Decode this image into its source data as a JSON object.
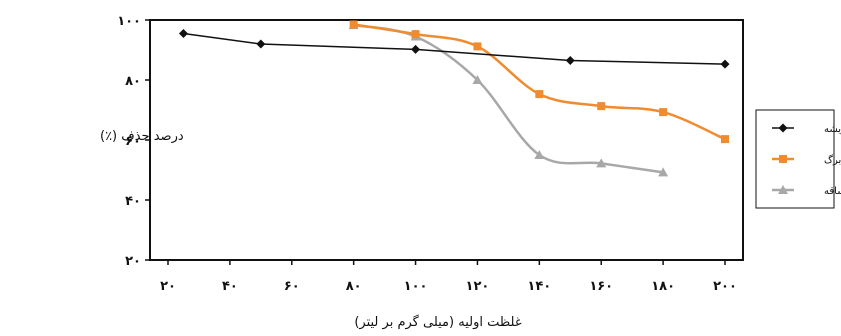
{
  "chart_data": {
    "type": "line",
    "xlabel": "غلظت اولیه (میلی گرم بر لیتر)",
    "ylabel": "درصد حذف (٪)",
    "xlim": [
      20,
      200
    ],
    "ylim": [
      20,
      100
    ],
    "x_ticks": [
      {
        "value": 20,
        "label": "۲۰"
      },
      {
        "value": 40,
        "label": "۴۰"
      },
      {
        "value": 60,
        "label": "۶۰"
      },
      {
        "value": 80,
        "label": "۸۰"
      },
      {
        "value": 100,
        "label": "۱۰۰"
      },
      {
        "value": 120,
        "label": "۱۲۰"
      },
      {
        "value": 140,
        "label": "۱۴۰"
      },
      {
        "value": 160,
        "label": "۱۶۰"
      },
      {
        "value": 180,
        "label": "۱۸۰"
      },
      {
        "value": 200,
        "label": "۲۰۰"
      }
    ],
    "y_ticks": [
      {
        "value": 20,
        "label": "۲۰"
      },
      {
        "value": 40,
        "label": "۴۰"
      },
      {
        "value": 60,
        "label": "۶۰"
      },
      {
        "value": 80,
        "label": "۸۰"
      },
      {
        "value": 100,
        "label": "۱۰۰"
      }
    ],
    "grid": false,
    "legend_position": "right",
    "series": [
      {
        "name": "ریشه",
        "color": "#111111",
        "marker": "diamond",
        "smooth": false,
        "x": [
          25,
          50,
          100,
          150,
          200
        ],
        "y": [
          95.5,
          92,
          90.2,
          86.5,
          85.3
        ]
      },
      {
        "name": "برگ",
        "color": "#F08C30",
        "marker": "square",
        "smooth": true,
        "x": [
          80,
          100,
          120,
          140,
          160,
          180,
          200
        ],
        "y": [
          98.5,
          95.3,
          91.2,
          75.3,
          71.3,
          69.3,
          60.3
        ]
      },
      {
        "name": "ساقه",
        "color": "#A8A8A8",
        "marker": "triangle",
        "smooth": true,
        "x": [
          80,
          100,
          120,
          140,
          160,
          180
        ],
        "y": [
          98.3,
          94.5,
          80,
          55,
          52.2,
          49.2
        ]
      }
    ]
  }
}
